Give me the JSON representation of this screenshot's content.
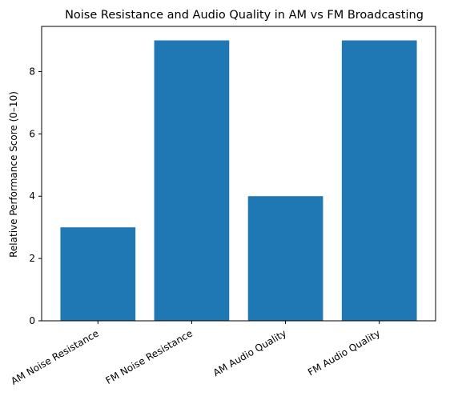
{
  "chart_data": {
    "type": "bar",
    "title": "Noise Resistance and Audio Quality in AM vs FM Broadcasting",
    "xlabel": "",
    "ylabel": "Relative Performance Score (0–10)",
    "categories": [
      "AM Noise Resistance",
      "FM Noise Resistance",
      "AM Audio Quality",
      "FM Audio Quality"
    ],
    "values": [
      3,
      9,
      4,
      9
    ],
    "ylim": [
      0,
      9.45
    ],
    "yticks": [
      0,
      2,
      4,
      6,
      8
    ],
    "grid": false,
    "legend": "none",
    "bar_color": "#1f77b4"
  }
}
